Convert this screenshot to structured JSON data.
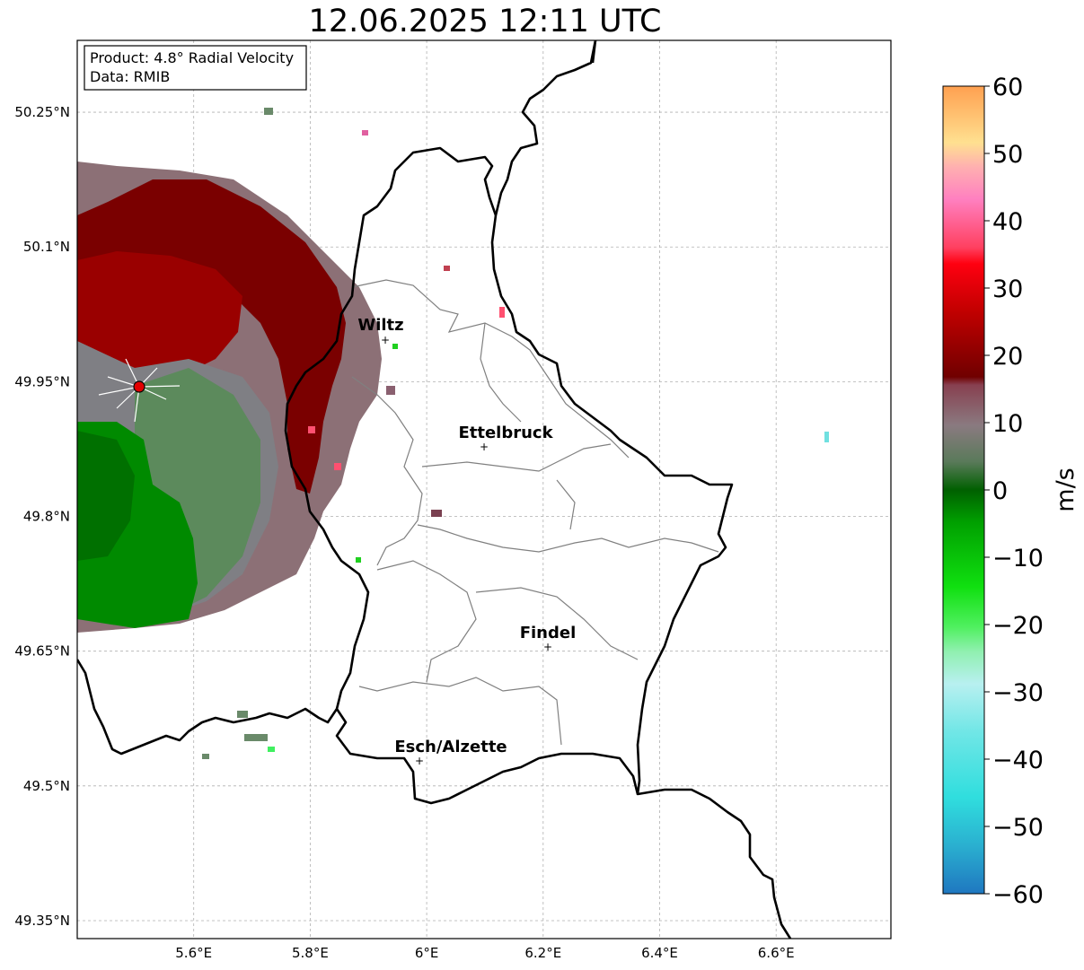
{
  "title": "12.06.2025 12:11 UTC",
  "info_box": {
    "line1": "Product: 4.8° Radial Velocity",
    "line2": "Data: RMIB"
  },
  "map": {
    "lon_range": [
      5.4,
      6.8
    ],
    "lat_range": [
      49.3,
      50.3
    ],
    "lon_ticks": [
      "5.6°E",
      "5.8°E",
      "6°E",
      "6.2°E",
      "6.4°E",
      "6.6°E"
    ],
    "lat_ticks": [
      "50.25°N",
      "50.1°N",
      "49.95°N",
      "49.8°N",
      "49.65°N",
      "49.5°N",
      "49.35°N"
    ]
  },
  "cities": [
    {
      "name": "Wiltz"
    },
    {
      "name": "Ettelbruck"
    },
    {
      "name": "Findel"
    },
    {
      "name": "Esch/Alzette"
    }
  ],
  "radar_site": {
    "color": "#e00000"
  },
  "colorbar": {
    "unit": "m/s",
    "range": [
      -60,
      60
    ],
    "ticks": [
      "60",
      "50",
      "40",
      "30",
      "20",
      "10",
      "0",
      "−10",
      "−20",
      "−30",
      "−40",
      "−50",
      "−60"
    ]
  },
  "colors": {
    "border": "#000000",
    "cantons": "#808080",
    "grid": "#b0b0b0",
    "approaching_green": "#008000",
    "receding_red": "#8b0000",
    "near_zero": "#8a7078"
  }
}
